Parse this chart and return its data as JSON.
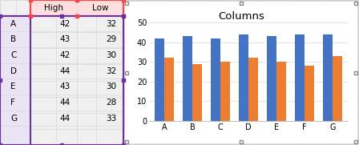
{
  "categories": [
    "A",
    "B",
    "C",
    "D",
    "E",
    "F",
    "G"
  ],
  "high": [
    42,
    43,
    42,
    44,
    43,
    44,
    44
  ],
  "low": [
    32,
    29,
    30,
    32,
    30,
    28,
    33
  ],
  "high_color": "#4472C4",
  "low_color": "#ED7D31",
  "title": "Columns",
  "ylim": [
    0,
    50
  ],
  "yticks": [
    0,
    10,
    20,
    30,
    40,
    50
  ],
  "legend_labels": [
    "High",
    "Low"
  ],
  "bg_color": "#FFFFFF",
  "sheet_bg": "#F0F0F0",
  "grid_color": "#D9D9D9",
  "chart_border": "#BFBFBF",
  "table_sel_color": "#7030A0",
  "table_sel_red": "#FF0000",
  "col_header_bg": "#FFE0E0",
  "row_label_bg": "#E8E4F0",
  "bar_gap": 0.15,
  "bar_width": 0.35
}
